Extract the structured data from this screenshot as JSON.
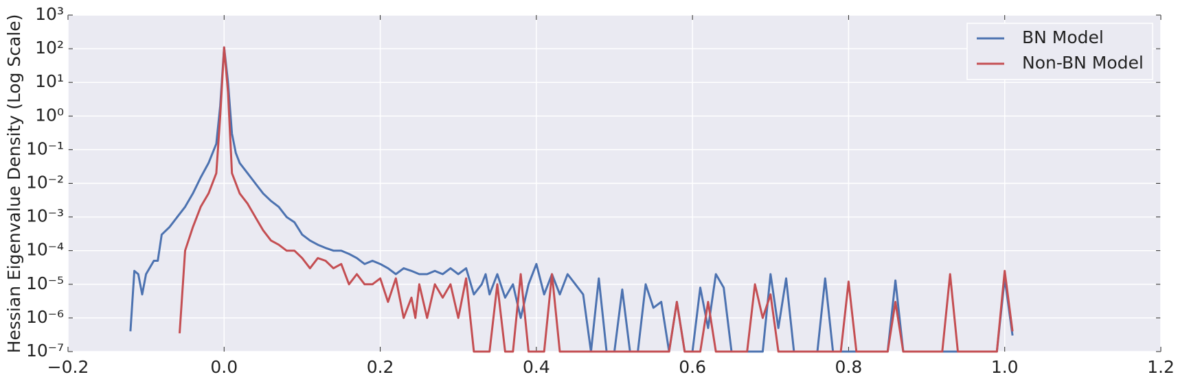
{
  "chart_data": {
    "type": "line",
    "ylabel": "Hessian Eigenvalue Density (Log Scale)",
    "yscale": "log",
    "grid": true,
    "legend_loc": "upper right",
    "xlim": [
      -0.2,
      1.2
    ],
    "xticks": [
      {
        "value": -0.2,
        "label": "−0.2"
      },
      {
        "value": 0,
        "label": "0.0"
      },
      0.2,
      0.4,
      0.6,
      0.8,
      {
        "value": 1,
        "label": "1.0"
      },
      1.2
    ],
    "ylim": [
      1e-07,
      1000
    ],
    "yticks": [
      {
        "value": 1e-07,
        "label": "10⁻⁷"
      },
      {
        "value": 1e-06,
        "label": "10⁻⁶"
      },
      {
        "value": 1e-05,
        "label": "10⁻⁵"
      },
      {
        "value": 0.0001,
        "label": "10⁻⁴"
      },
      {
        "value": 0.001,
        "label": "10⁻³"
      },
      {
        "value": 0.01,
        "label": "10⁻²"
      },
      {
        "value": 0.1,
        "label": "10⁻¹"
      },
      {
        "value": 1,
        "label": "10⁰"
      },
      {
        "value": 10,
        "label": "10¹"
      },
      {
        "value": 100,
        "label": "10²"
      },
      {
        "value": 1000,
        "label": "10³"
      }
    ],
    "series": [
      {
        "name": "BN Model",
        "color": "#4c72b0",
        "x": [
          -0.12,
          -0.115,
          -0.11,
          -0.105,
          -0.1,
          -0.09,
          -0.085,
          -0.08,
          -0.07,
          -0.06,
          -0.05,
          -0.04,
          -0.03,
          -0.02,
          -0.01,
          -0.005,
          0,
          0.005,
          0.01,
          0.015,
          0.02,
          0.03,
          0.04,
          0.05,
          0.06,
          0.07,
          0.08,
          0.09,
          0.1,
          0.11,
          0.12,
          0.13,
          0.14,
          0.15,
          0.16,
          0.17,
          0.18,
          0.19,
          0.2,
          0.21,
          0.22,
          0.23,
          0.24,
          0.25,
          0.26,
          0.27,
          0.28,
          0.29,
          0.3,
          0.31,
          0.32,
          0.33,
          0.335,
          0.34,
          0.35,
          0.36,
          0.37,
          0.38,
          0.39,
          0.4,
          0.41,
          0.42,
          0.43,
          0.44,
          0.45,
          0.46,
          0.47,
          0.48,
          0.49,
          0.5,
          0.51,
          0.52,
          0.53,
          0.54,
          0.55,
          0.56,
          0.57,
          0.58,
          0.59,
          0.6,
          0.61,
          0.62,
          0.63,
          0.64,
          0.65,
          0.69,
          0.7,
          0.71,
          0.72,
          0.73,
          0.76,
          0.77,
          0.78,
          0.85,
          0.86,
          0.87,
          0.99,
          1.0,
          1.01
        ],
        "values": [
          4e-07,
          2.5e-05,
          2e-05,
          5e-06,
          2e-05,
          5e-05,
          5e-05,
          0.0003,
          0.0005,
          0.001,
          0.002,
          0.005,
          0.015,
          0.04,
          0.15,
          2,
          110,
          10,
          0.3,
          0.08,
          0.04,
          0.02,
          0.01,
          0.005,
          0.003,
          0.002,
          0.001,
          0.0007,
          0.0003,
          0.0002,
          0.00015,
          0.00012,
          0.0001,
          0.0001,
          8e-05,
          6e-05,
          4e-05,
          5e-05,
          4e-05,
          3e-05,
          2e-05,
          3e-05,
          2.5e-05,
          2e-05,
          2e-05,
          2.5e-05,
          2e-05,
          3e-05,
          2e-05,
          3e-05,
          5e-06,
          1e-05,
          2e-05,
          5e-06,
          2e-05,
          4e-06,
          1e-05,
          1e-06,
          1e-05,
          4e-05,
          5e-06,
          2e-05,
          5e-06,
          2e-05,
          1e-05,
          5e-06,
          1e-07,
          1.5e-05,
          1e-07,
          1e-07,
          7e-06,
          1e-07,
          1e-07,
          1e-05,
          2e-06,
          3e-06,
          1e-07,
          3e-06,
          1e-07,
          1e-07,
          8e-06,
          5e-07,
          2e-05,
          8e-06,
          1e-07,
          1e-07,
          2e-05,
          5e-07,
          1.5e-05,
          1e-07,
          1e-07,
          1.5e-05,
          1e-07,
          1e-07,
          1.3e-05,
          1e-07,
          1e-07,
          1.5e-05,
          3e-07
        ]
      },
      {
        "name": "Non-BN Model",
        "color": "#c44e52",
        "x": [
          -0.057,
          -0.05,
          -0.04,
          -0.03,
          -0.02,
          -0.01,
          -0.005,
          0,
          0.005,
          0.01,
          0.02,
          0.03,
          0.04,
          0.05,
          0.06,
          0.07,
          0.08,
          0.09,
          0.1,
          0.11,
          0.12,
          0.13,
          0.14,
          0.15,
          0.16,
          0.17,
          0.18,
          0.19,
          0.2,
          0.21,
          0.22,
          0.23,
          0.24,
          0.245,
          0.25,
          0.26,
          0.27,
          0.28,
          0.29,
          0.3,
          0.31,
          0.32,
          0.34,
          0.35,
          0.36,
          0.37,
          0.38,
          0.39,
          0.41,
          0.42,
          0.43,
          0.57,
          0.58,
          0.59,
          0.61,
          0.62,
          0.63,
          0.67,
          0.68,
          0.69,
          0.7,
          0.71,
          0.79,
          0.8,
          0.81,
          0.85,
          0.86,
          0.87,
          0.92,
          0.93,
          0.94,
          0.99,
          1.0,
          1.01
        ],
        "values": [
          3.5e-07,
          0.0001,
          0.0005,
          0.002,
          0.005,
          0.02,
          1,
          110,
          5,
          0.02,
          0.005,
          0.0025,
          0.001,
          0.0004,
          0.0002,
          0.00015,
          0.0001,
          0.0001,
          6e-05,
          3e-05,
          6e-05,
          5e-05,
          3e-05,
          4e-05,
          1e-05,
          2e-05,
          1e-05,
          1e-05,
          1.5e-05,
          3e-06,
          1.5e-05,
          1e-06,
          4e-06,
          1e-06,
          1e-05,
          1e-06,
          1e-05,
          4e-06,
          1e-05,
          1e-06,
          1.5e-05,
          1e-07,
          1e-07,
          1e-05,
          1e-07,
          1e-07,
          2e-05,
          1e-07,
          1e-07,
          2e-05,
          1e-07,
          1e-07,
          3e-06,
          1e-07,
          1e-07,
          3e-06,
          1e-07,
          1e-07,
          1e-05,
          1e-06,
          5e-06,
          1e-07,
          1e-07,
          1.2e-05,
          1e-07,
          1e-07,
          3e-06,
          1e-07,
          1e-07,
          2e-05,
          1e-07,
          1e-07,
          2.5e-05,
          4e-07
        ]
      }
    ]
  }
}
